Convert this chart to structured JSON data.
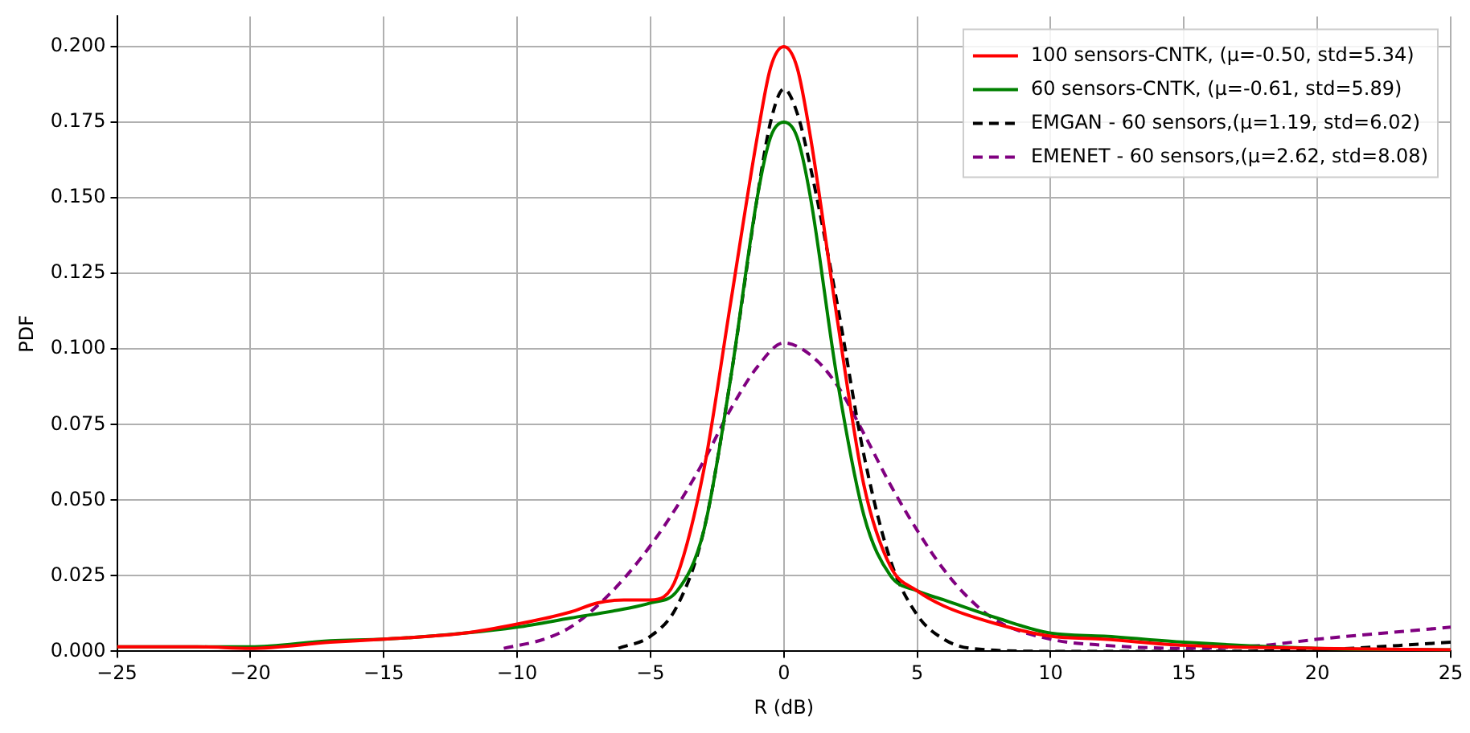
{
  "chart_data": {
    "type": "line",
    "xlabel": "R (dB)",
    "ylabel": "PDF",
    "grid": true,
    "legend": "top right",
    "marker": "none",
    "xlim": [
      -25,
      25
    ],
    "xticks": [
      {
        "value": -25,
        "label": "−25"
      },
      {
        "value": -20,
        "label": "−20"
      },
      {
        "value": -15,
        "label": "−15"
      },
      {
        "value": -10,
        "label": "−10"
      },
      {
        "value": -5,
        "label": "−5"
      },
      0,
      5,
      10,
      15,
      20,
      25
    ],
    "ylim": [
      0,
      0.21
    ],
    "yticks": [
      {
        "value": 0,
        "label": "0.000"
      },
      {
        "value": 0.025,
        "label": "0.025"
      },
      {
        "value": 0.05,
        "label": "0.050"
      },
      {
        "value": 0.075,
        "label": "0.075"
      },
      {
        "value": 0.1,
        "label": "0.100"
      },
      {
        "value": 0.125,
        "label": "0.125"
      },
      {
        "value": 0.15,
        "label": "0.150"
      },
      {
        "value": 0.175,
        "label": "0.175"
      },
      {
        "value": 0.2,
        "label": "0.200"
      }
    ],
    "series": [
      {
        "name": "100 sensors-CNTK, (μ=-0.50, std=5.34)",
        "color": "#ff0000",
        "line_style": "solid",
        "x": [
          -25,
          -22,
          -20,
          -17,
          -15,
          -12,
          -10,
          -8,
          -7,
          -6,
          -5,
          -4.5,
          -4,
          -3,
          -2,
          -1,
          -0.5,
          0,
          0.5,
          1,
          2,
          3,
          4,
          5,
          6,
          8,
          10,
          12,
          15,
          20,
          25
        ],
        "values": [
          0.0015,
          0.0015,
          0.001,
          0.003,
          0.004,
          0.006,
          0.009,
          0.013,
          0.016,
          0.017,
          0.017,
          0.018,
          0.025,
          0.06,
          0.115,
          0.17,
          0.193,
          0.2,
          0.193,
          0.17,
          0.11,
          0.055,
          0.028,
          0.02,
          0.015,
          0.009,
          0.005,
          0.004,
          0.002,
          0.001,
          0.0005
        ]
      },
      {
        "name": "60 sensors-CNTK, (μ=-0.61, std=5.89)",
        "color": "#008000",
        "line_style": "solid",
        "x": [
          -25,
          -20,
          -17,
          -15,
          -12,
          -10,
          -8,
          -6,
          -5,
          -4,
          -3,
          -2,
          -1,
          -0.5,
          0,
          0.5,
          1,
          2,
          3,
          4,
          5,
          6,
          8,
          10,
          12,
          15,
          20,
          25
        ],
        "values": [
          0.0015,
          0.0015,
          0.0035,
          0.004,
          0.006,
          0.008,
          0.011,
          0.014,
          0.016,
          0.02,
          0.04,
          0.09,
          0.15,
          0.17,
          0.175,
          0.17,
          0.15,
          0.09,
          0.045,
          0.025,
          0.02,
          0.017,
          0.011,
          0.006,
          0.005,
          0.003,
          0.001,
          0.0005
        ]
      },
      {
        "name": "EMGAN - 60 sensors,(μ=1.19, std=6.02)",
        "color": "#000000",
        "line_style": "dashed",
        "x": [
          -6.2,
          -5,
          -4,
          -3,
          -2,
          -1,
          -0.5,
          0,
          0.5,
          1,
          2,
          3,
          4,
          5,
          6,
          7,
          10,
          15,
          20,
          25
        ],
        "values": [
          0.001,
          0.005,
          0.015,
          0.04,
          0.09,
          0.15,
          0.175,
          0.186,
          0.178,
          0.16,
          0.115,
          0.065,
          0.03,
          0.012,
          0.004,
          0.001,
          0,
          0,
          0.0005,
          0.003
        ]
      },
      {
        "name": "EMENET - 60 sensors,(μ=2.62, std=8.08)",
        "color": "#800080",
        "line_style": "dashed",
        "x": [
          -10.5,
          -9,
          -8,
          -7,
          -6,
          -5,
          -4,
          -3,
          -2,
          -1,
          0,
          1,
          2,
          3,
          4,
          5,
          6,
          7,
          8,
          10,
          12,
          15,
          18,
          20,
          25
        ],
        "values": [
          0.001,
          0.004,
          0.008,
          0.015,
          0.024,
          0.035,
          0.048,
          0.063,
          0.08,
          0.094,
          0.102,
          0.098,
          0.088,
          0.072,
          0.055,
          0.04,
          0.027,
          0.017,
          0.01,
          0.004,
          0.002,
          0.001,
          0.002,
          0.004,
          0.008
        ]
      }
    ]
  }
}
